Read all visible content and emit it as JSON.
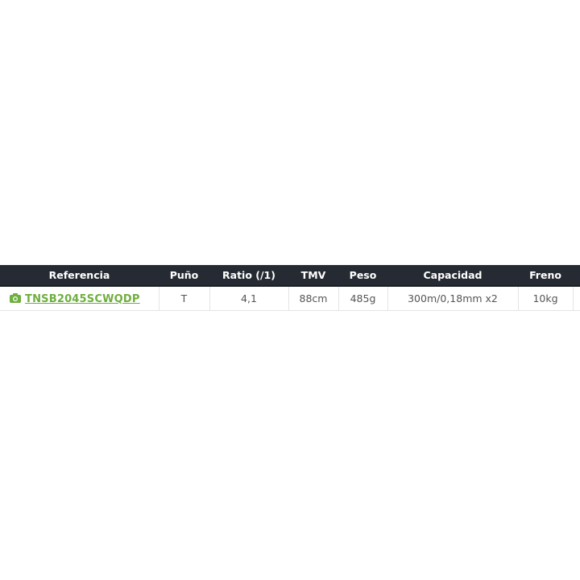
{
  "table": {
    "headers": [
      "Referencia",
      "Puño",
      "Ratio (/1)",
      "TMV",
      "Peso",
      "Capacidad",
      "Freno",
      ""
    ],
    "rows": [
      {
        "referencia": "TNSB2045SCWQDP",
        "puno": "T",
        "ratio": "4,1",
        "tmv": "88cm",
        "peso": "485g",
        "capacidad": "300m/0,18mm x2",
        "freno": "10kg"
      }
    ]
  },
  "colors": {
    "header_bg": "#262b33",
    "link": "#6fae3f"
  },
  "icons": {
    "reference": "camera-icon"
  }
}
